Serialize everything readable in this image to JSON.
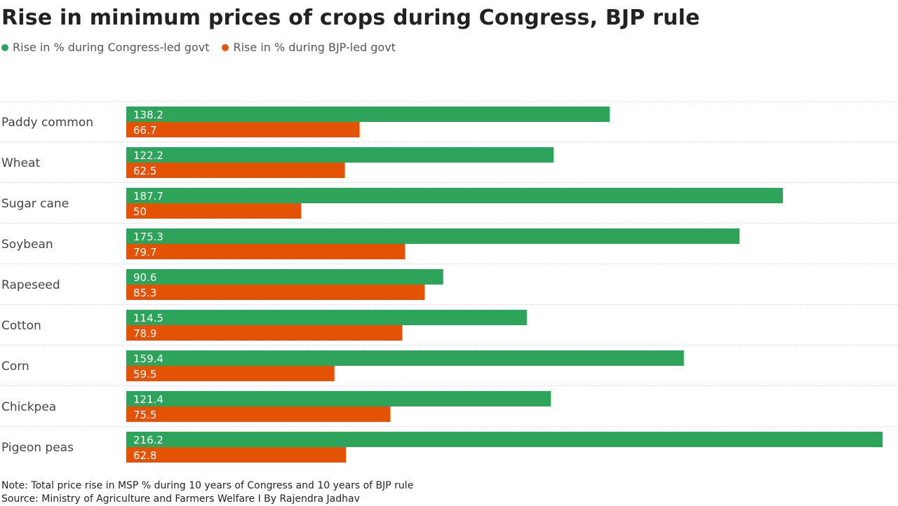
{
  "chart_data": {
    "type": "bar",
    "orientation": "horizontal",
    "title": "Rise in minimum prices of crops during Congress, BJP rule",
    "categories": [
      "Paddy common",
      "Wheat",
      "Sugar cane",
      "Soybean",
      "Rapeseed",
      "Cotton",
      "Corn",
      "Chickpea",
      "Pigeon peas"
    ],
    "series": [
      {
        "name": "Rise in % during Congress-led govt",
        "color": "#2ea35a",
        "values": [
          138.2,
          122.2,
          187.7,
          175.3,
          90.6,
          114.5,
          159.4,
          121.4,
          216.2
        ]
      },
      {
        "name": "Rise in % during BJP-led govt",
        "color": "#e35205",
        "values": [
          66.7,
          62.5,
          50,
          79.7,
          85.3,
          78.9,
          59.5,
          75.5,
          62.8
        ]
      }
    ],
    "xlim": [
      0,
      216.2
    ],
    "legend_position": "top-left",
    "grid": false,
    "data_labels": true
  },
  "footer": {
    "note": "Note: Total price rise in MSP % during 10 years of Congress and 10 years of BJP rule",
    "source": "Source: Ministry of Agriculture and Farmers Welfare I By Rajendra Jadhav"
  }
}
